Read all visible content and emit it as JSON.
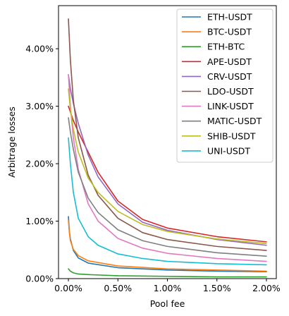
{
  "chart_data": {
    "type": "line",
    "xlabel": "Pool fee",
    "ylabel": "Arbitrage losses",
    "xlim": [
      -0.001,
      0.021
    ],
    "ylim": [
      0,
      0.0475
    ],
    "xticks": [
      0,
      0.005,
      0.01,
      0.015,
      0.02
    ],
    "xtick_labels": [
      "0.00%",
      "0.50%",
      "1.00%",
      "1.50%",
      "2.00%"
    ],
    "yticks": [
      0,
      0.01,
      0.02,
      0.03,
      0.04
    ],
    "ytick_labels": [
      "0.00%",
      "1.00%",
      "2.00%",
      "3.00%",
      "4.00%"
    ],
    "grid": false,
    "legend_position": "top-right",
    "series": [
      {
        "name": "ETH-USDT",
        "color": "#1f77b4",
        "x": [
          0,
          0.0001,
          0.0002,
          0.0005,
          0.001,
          0.002,
          0.005,
          0.01,
          0.015,
          0.02
        ],
        "values": [
          0.0108,
          0.0082,
          0.0069,
          0.0049,
          0.0036,
          0.0027,
          0.0019,
          0.0015,
          0.0013,
          0.0012
        ]
      },
      {
        "name": "BTC-USDT",
        "color": "#ff7f0e",
        "x": [
          0,
          0.0001,
          0.0002,
          0.0005,
          0.001,
          0.002,
          0.005,
          0.01,
          0.015,
          0.02
        ],
        "values": [
          0.0101,
          0.0079,
          0.0066,
          0.0051,
          0.004,
          0.0031,
          0.0022,
          0.0017,
          0.0015,
          0.0013
        ]
      },
      {
        "name": "ETH-BTC",
        "color": "#2ca02c",
        "x": [
          0,
          0.0002,
          0.0005,
          0.001,
          0.002,
          0.005,
          0.01,
          0.015,
          0.02
        ],
        "values": [
          0.0017,
          0.0013,
          0.001,
          0.0008,
          0.0007,
          0.0005,
          0.0004,
          0.0003,
          0.0003
        ]
      },
      {
        "name": "APE-USDT",
        "color": "#d62728",
        "x": [
          0,
          0.0002,
          0.0005,
          0.001,
          0.002,
          0.003,
          0.005,
          0.0075,
          0.01,
          0.015,
          0.02
        ],
        "values": [
          0.03,
          0.029,
          0.0275,
          0.0255,
          0.022,
          0.0185,
          0.0135,
          0.0103,
          0.0088,
          0.0073,
          0.0064
        ]
      },
      {
        "name": "CRV-USDT",
        "color": "#9467bd",
        "x": [
          0,
          0.0002,
          0.0005,
          0.001,
          0.002,
          0.003,
          0.005,
          0.0075,
          0.01,
          0.015,
          0.02
        ],
        "values": [
          0.0355,
          0.033,
          0.0305,
          0.027,
          0.0215,
          0.0177,
          0.013,
          0.0098,
          0.0084,
          0.0068,
          0.0058
        ]
      },
      {
        "name": "LDO-USDT",
        "color": "#8c564b",
        "x": [
          0,
          0.0002,
          0.0005,
          0.001,
          0.002,
          0.003,
          0.005,
          0.0075,
          0.01,
          0.015,
          0.02
        ],
        "values": [
          0.0452,
          0.038,
          0.031,
          0.0245,
          0.018,
          0.0145,
          0.0105,
          0.008,
          0.0068,
          0.0056,
          0.0049
        ]
      },
      {
        "name": "LINK-USDT",
        "color": "#e377c2",
        "x": [
          0,
          0.0002,
          0.0005,
          0.001,
          0.002,
          0.003,
          0.005,
          0.0075,
          0.01,
          0.015,
          0.02
        ],
        "values": [
          0.0355,
          0.03,
          0.0245,
          0.019,
          0.013,
          0.01,
          0.007,
          0.0053,
          0.0044,
          0.0035,
          0.003
        ]
      },
      {
        "name": "MATIC-USDT",
        "color": "#7f7f7f",
        "x": [
          0,
          0.0002,
          0.0005,
          0.001,
          0.002,
          0.003,
          0.005,
          0.0075,
          0.01,
          0.015,
          0.02
        ],
        "values": [
          0.028,
          0.0255,
          0.0225,
          0.0185,
          0.014,
          0.0115,
          0.0085,
          0.0066,
          0.0056,
          0.0045,
          0.0039
        ]
      },
      {
        "name": "SHIB-USDT",
        "color": "#bcbd22",
        "x": [
          0,
          0.0002,
          0.0005,
          0.001,
          0.002,
          0.003,
          0.005,
          0.0075,
          0.01,
          0.015,
          0.02
        ],
        "values": [
          0.033,
          0.0295,
          0.026,
          0.022,
          0.0175,
          0.015,
          0.0117,
          0.0094,
          0.0082,
          0.0069,
          0.0061
        ]
      },
      {
        "name": "UNI-USDT",
        "color": "#17becf",
        "x": [
          0,
          0.0002,
          0.0005,
          0.001,
          0.002,
          0.003,
          0.005,
          0.0075,
          0.01,
          0.015,
          0.02
        ],
        "values": [
          0.0245,
          0.02,
          0.015,
          0.0105,
          0.0073,
          0.0058,
          0.0043,
          0.0035,
          0.003,
          0.0026,
          0.0024
        ]
      }
    ]
  }
}
